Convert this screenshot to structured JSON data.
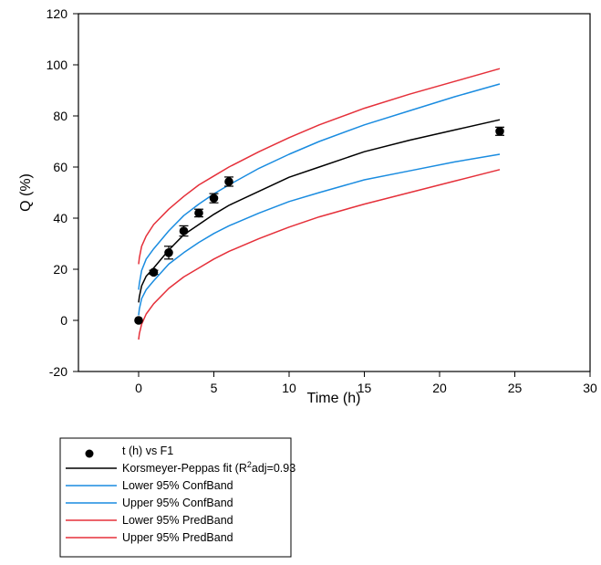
{
  "chart_data": {
    "type": "scatter",
    "xlabel": "Time (h)",
    "ylabel": "Q (%)",
    "xlim": [
      -4,
      30
    ],
    "ylim": [
      -20,
      120
    ],
    "xticks": [
      0,
      5,
      10,
      15,
      20,
      25,
      30
    ],
    "yticks": [
      -20,
      0,
      20,
      40,
      60,
      80,
      100,
      120
    ],
    "legend_position": "below",
    "series": [
      {
        "name": "t (h) vs F1",
        "kind": "points",
        "color": "#000000",
        "x": [
          0,
          1,
          2,
          3,
          4,
          5,
          6,
          24
        ],
        "y": [
          0,
          18.8,
          26.5,
          35,
          42,
          47.8,
          54.3,
          74
        ],
        "err": [
          0,
          0.8,
          2.5,
          2,
          1.5,
          1.8,
          1.8,
          1.6
        ]
      },
      {
        "name": "Korsmeyer-Peppas fit (R",
        "name_sup": "2",
        "name_suffix": "adj=0.93",
        "kind": "curve",
        "color": "#000000",
        "x": [
          0,
          0.05,
          0.2,
          0.5,
          1,
          2,
          3,
          4,
          5,
          6,
          8,
          10,
          12,
          15,
          18,
          21,
          24
        ],
        "y": [
          7,
          9.3,
          13.5,
          17.3,
          20.5,
          27.5,
          33.5,
          37.5,
          41.5,
          45,
          50.5,
          56,
          60,
          66,
          70.5,
          74.5,
          78.5
        ]
      },
      {
        "name": "Lower 95% ConfBand",
        "kind": "curve",
        "color": "#1a8ce0",
        "x": [
          0,
          0.05,
          0.2,
          0.5,
          1,
          2,
          3,
          4,
          5,
          6,
          8,
          10,
          12,
          15,
          18,
          21,
          24
        ],
        "y": [
          2,
          4.5,
          8.5,
          12,
          15.5,
          22,
          26.5,
          30.5,
          34,
          37,
          42,
          46.5,
          50,
          55,
          58.5,
          62,
          65
        ]
      },
      {
        "name": "Upper 95% ConfBand",
        "kind": "curve",
        "color": "#1a8ce0",
        "x": [
          0,
          0.05,
          0.2,
          0.5,
          1,
          2,
          3,
          4,
          5,
          6,
          8,
          10,
          12,
          15,
          18,
          21,
          24
        ],
        "y": [
          12,
          14.5,
          19.5,
          24,
          28,
          35,
          41,
          45.5,
          49.5,
          53,
          59.5,
          65,
          70,
          76.5,
          82,
          87.5,
          92.5
        ]
      },
      {
        "name": "Lower 95% PredBand",
        "kind": "curve",
        "color": "#e5303a",
        "x": [
          0,
          0.05,
          0.2,
          0.5,
          1,
          2,
          3,
          4,
          5,
          6,
          8,
          10,
          12,
          15,
          18,
          21,
          24
        ],
        "y": [
          -7.5,
          -5.2,
          -1.5,
          2.5,
          6.5,
          12.5,
          17,
          20.5,
          24,
          27,
          32,
          36.5,
          40.5,
          45.5,
          50,
          54.5,
          59
        ]
      },
      {
        "name": "Upper 95% PredBand",
        "kind": "curve",
        "color": "#e5303a",
        "x": [
          0,
          0.05,
          0.2,
          0.5,
          1,
          2,
          3,
          4,
          5,
          6,
          8,
          10,
          12,
          15,
          18,
          21,
          24
        ],
        "y": [
          22,
          24.5,
          29,
          33,
          37.5,
          43.5,
          48.5,
          53,
          56.5,
          60,
          66,
          71.5,
          76.5,
          83,
          88.5,
          93.5,
          98.5
        ]
      }
    ]
  }
}
